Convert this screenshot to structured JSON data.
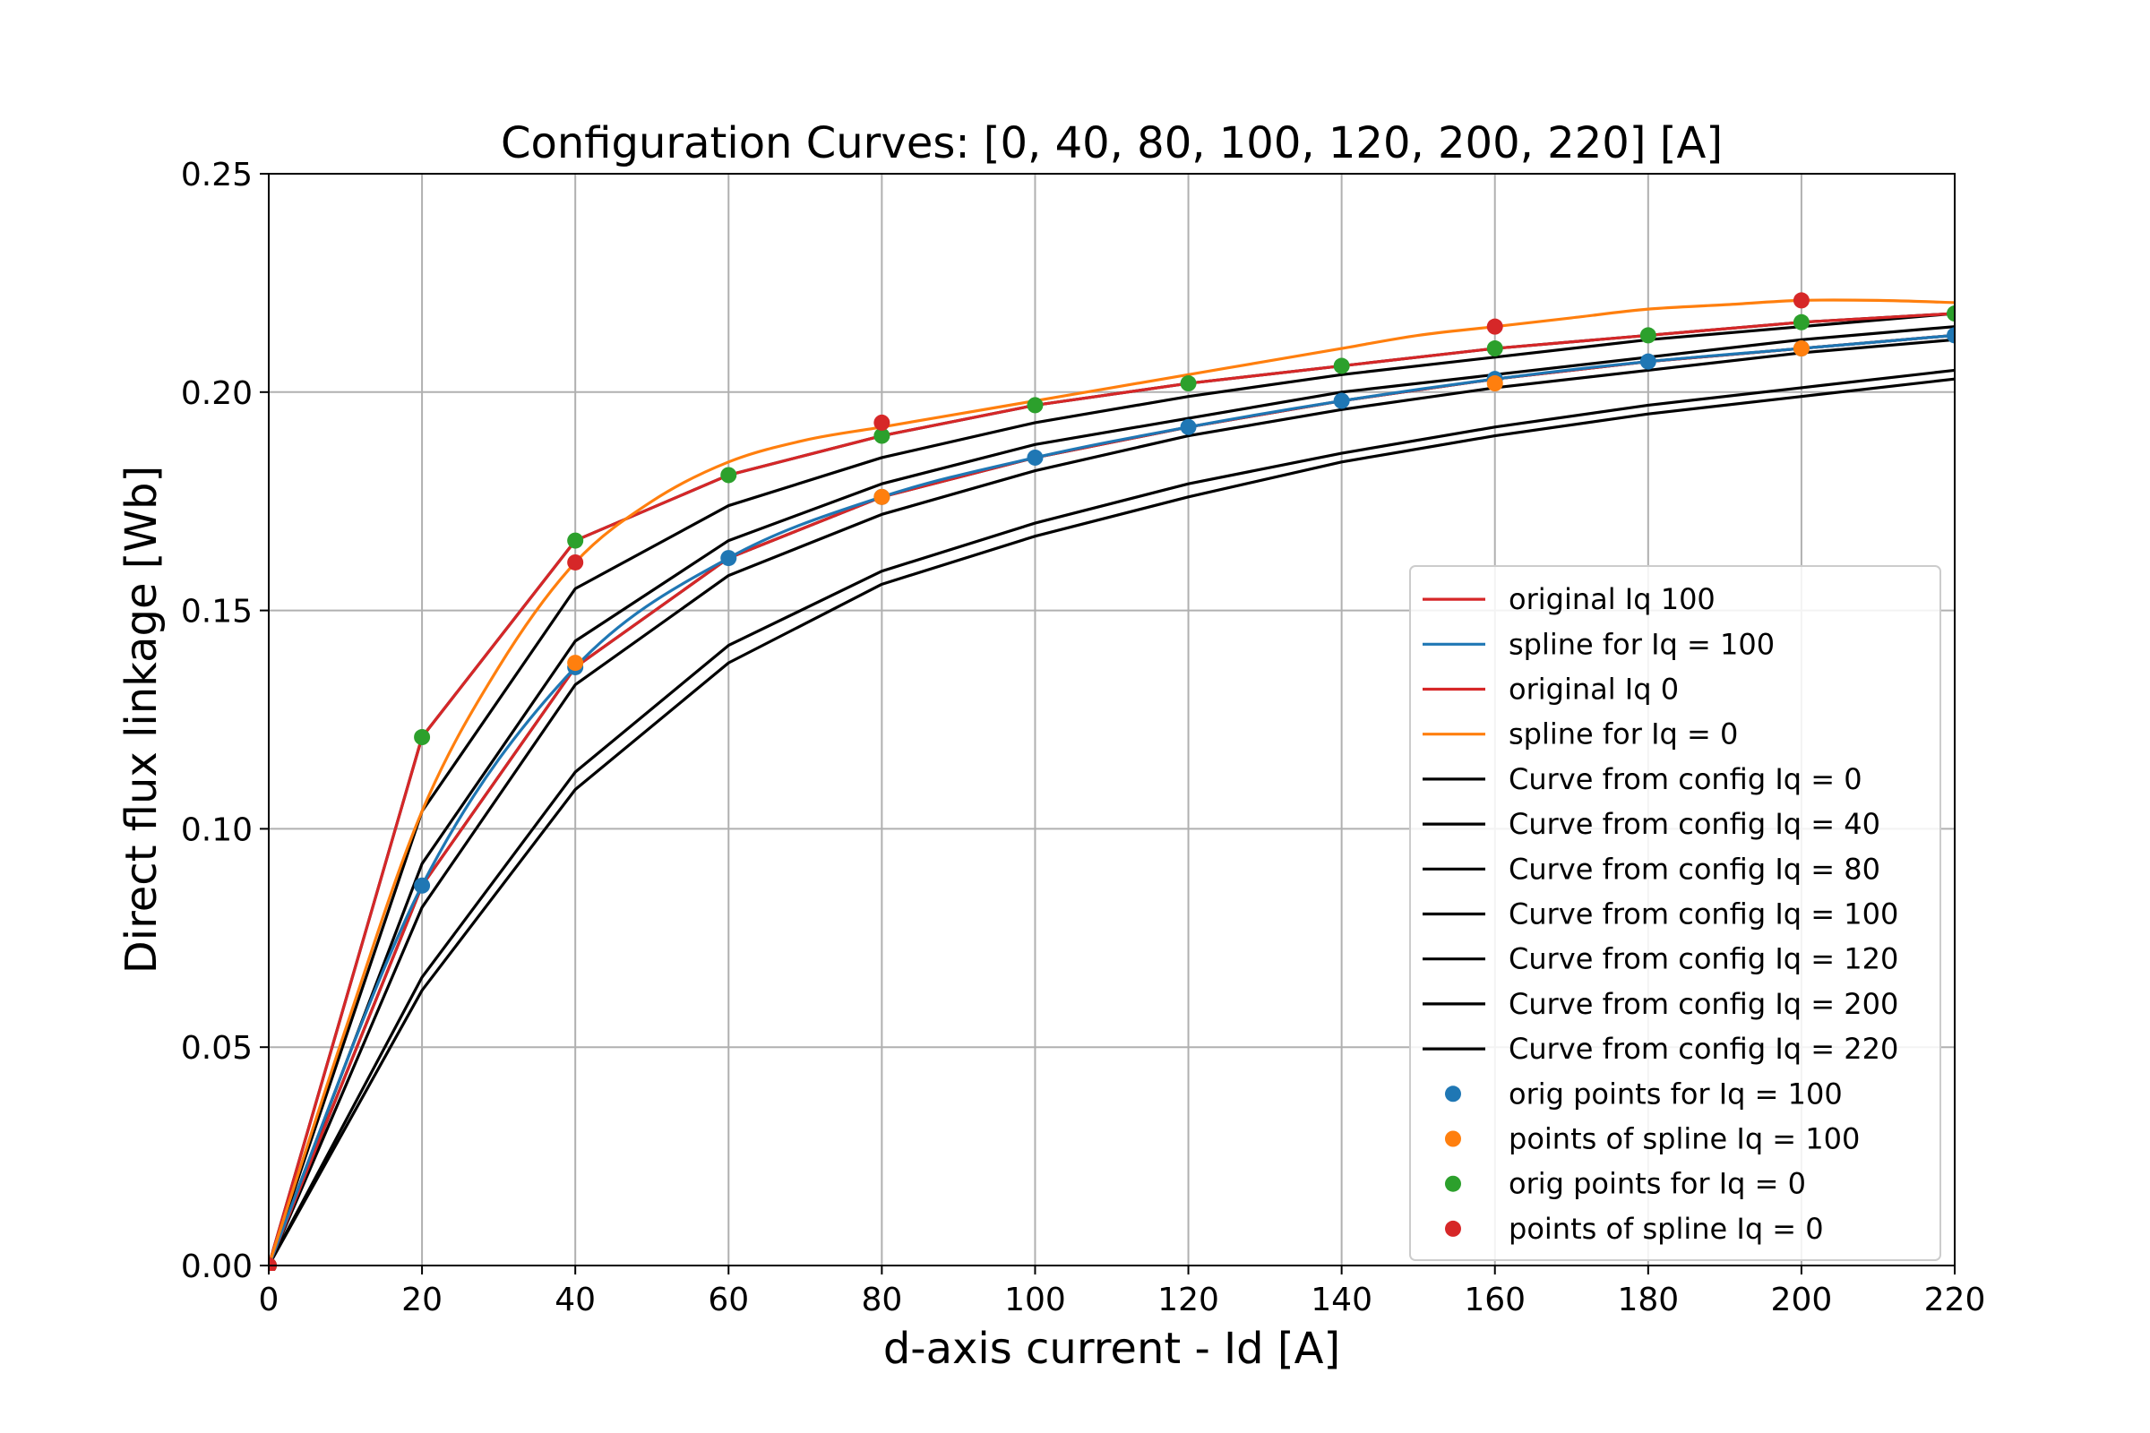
{
  "chart_data": {
    "type": "line",
    "title": "Configuration Curves: [0, 40, 80, 100, 120, 200, 220] [A]",
    "xlabel": "d-axis current - Id [A]",
    "ylabel": "Direct flux linkage [Wb]",
    "xlim": [
      0,
      220
    ],
    "ylim": [
      0,
      0.25
    ],
    "xticks": [
      0,
      20,
      40,
      60,
      80,
      100,
      120,
      140,
      160,
      180,
      200,
      220
    ],
    "xtick_labels": [
      "0",
      "20",
      "40",
      "60",
      "80",
      "100",
      "120",
      "140",
      "160",
      "180",
      "200",
      "220"
    ],
    "yticks": [
      0,
      0.05,
      0.1,
      0.15,
      0.2,
      0.25
    ],
    "ytick_labels": [
      "0.00",
      "0.05",
      "0.10",
      "0.15",
      "0.20",
      "0.25"
    ],
    "grid": true,
    "legend_position": "lower-right",
    "x": [
      0,
      20,
      40,
      60,
      80,
      100,
      120,
      140,
      160,
      180,
      200,
      220
    ],
    "series": [
      {
        "name": "original Iq  100",
        "kind": "line",
        "color": "#d62728",
        "x": [
          0,
          20,
          40,
          60,
          80,
          100,
          120,
          140,
          160,
          180,
          200,
          220
        ],
        "values": [
          0,
          0.087,
          0.137,
          0.162,
          0.176,
          0.185,
          0.192,
          0.198,
          0.203,
          0.207,
          0.21,
          0.213
        ]
      },
      {
        "name": "spline for Iq  = 100",
        "kind": "spline",
        "color": "#1f77b4",
        "x": [
          0,
          20,
          40,
          60,
          80,
          100,
          120,
          140,
          160,
          180,
          200,
          220
        ],
        "values": [
          0,
          0.087,
          0.137,
          0.162,
          0.176,
          0.185,
          0.192,
          0.198,
          0.203,
          0.207,
          0.21,
          0.213
        ]
      },
      {
        "name": "original Iq  0",
        "kind": "line",
        "color": "#d62728",
        "x": [
          0,
          20,
          40,
          60,
          80,
          100,
          120,
          140,
          160,
          180,
          200,
          220
        ],
        "values": [
          0,
          0.121,
          0.166,
          0.181,
          0.19,
          0.197,
          0.202,
          0.206,
          0.21,
          0.213,
          0.216,
          0.218
        ]
      },
      {
        "name": "spline for Iq  = 0",
        "kind": "spline",
        "color": "#ff7f0e",
        "x": [
          0,
          10,
          20,
          30,
          40,
          50,
          60,
          70,
          80,
          90,
          100,
          110,
          120,
          130,
          140,
          150,
          160,
          170,
          180,
          190,
          200,
          210,
          220
        ],
        "values": [
          0,
          0.054,
          0.104,
          0.137,
          0.161,
          0.175,
          0.184,
          0.189,
          0.192,
          0.195,
          0.198,
          0.201,
          0.204,
          0.207,
          0.21,
          0.213,
          0.215,
          0.217,
          0.219,
          0.22,
          0.221,
          0.221,
          0.2205
        ]
      },
      {
        "name": "Curve from config Iq  = 0",
        "kind": "line",
        "color": "#000000",
        "x": [
          0,
          20,
          40,
          60,
          80,
          100,
          120,
          140,
          160,
          180,
          200,
          220
        ],
        "values": [
          0,
          0.121,
          0.166,
          0.181,
          0.19,
          0.197,
          0.202,
          0.206,
          0.21,
          0.213,
          0.216,
          0.218
        ]
      },
      {
        "name": "Curve from config Iq  = 40",
        "kind": "line",
        "color": "#000000",
        "x": [
          0,
          20,
          40,
          60,
          80,
          100,
          120,
          140,
          160,
          180,
          200,
          220
        ],
        "values": [
          0,
          0.104,
          0.155,
          0.174,
          0.185,
          0.193,
          0.199,
          0.204,
          0.208,
          0.212,
          0.215,
          0.218
        ]
      },
      {
        "name": "Curve from config Iq  = 80",
        "kind": "line",
        "color": "#000000",
        "x": [
          0,
          20,
          40,
          60,
          80,
          100,
          120,
          140,
          160,
          180,
          200,
          220
        ],
        "values": [
          0,
          0.092,
          0.143,
          0.166,
          0.179,
          0.188,
          0.194,
          0.2,
          0.204,
          0.208,
          0.212,
          0.215
        ]
      },
      {
        "name": "Curve from config Iq  = 100",
        "kind": "line",
        "color": "#000000",
        "x": [
          0,
          20,
          40,
          60,
          80,
          100,
          120,
          140,
          160,
          180,
          200,
          220
        ],
        "values": [
          0,
          0.087,
          0.137,
          0.162,
          0.176,
          0.185,
          0.192,
          0.198,
          0.203,
          0.207,
          0.21,
          0.213
        ]
      },
      {
        "name": "Curve from config Iq  = 120",
        "kind": "line",
        "color": "#000000",
        "x": [
          0,
          20,
          40,
          60,
          80,
          100,
          120,
          140,
          160,
          180,
          200,
          220
        ],
        "values": [
          0,
          0.082,
          0.133,
          0.158,
          0.172,
          0.182,
          0.19,
          0.196,
          0.201,
          0.205,
          0.209,
          0.212
        ]
      },
      {
        "name": "Curve from config Iq  = 200",
        "kind": "line",
        "color": "#000000",
        "x": [
          0,
          20,
          40,
          60,
          80,
          100,
          120,
          140,
          160,
          180,
          200,
          220
        ],
        "values": [
          0,
          0.066,
          0.113,
          0.142,
          0.159,
          0.17,
          0.179,
          0.186,
          0.192,
          0.197,
          0.201,
          0.205
        ]
      },
      {
        "name": "Curve from config Iq  = 220",
        "kind": "line",
        "color": "#000000",
        "x": [
          0,
          20,
          40,
          60,
          80,
          100,
          120,
          140,
          160,
          180,
          200,
          220
        ],
        "values": [
          0,
          0.063,
          0.109,
          0.138,
          0.156,
          0.167,
          0.176,
          0.184,
          0.19,
          0.195,
          0.199,
          0.203
        ]
      },
      {
        "name": "orig points for  Iq  = 100",
        "kind": "scatter",
        "color": "#1f77b4",
        "x": [
          0,
          20,
          40,
          60,
          80,
          100,
          120,
          140,
          160,
          180,
          200,
          220
        ],
        "values": [
          0,
          0.087,
          0.137,
          0.162,
          0.176,
          0.185,
          0.192,
          0.198,
          0.203,
          0.207,
          0.21,
          0.213
        ]
      },
      {
        "name": "points of spline Iq  = 100",
        "kind": "scatter",
        "color": "#ff7f0e",
        "x": [
          0,
          40,
          80,
          160,
          200
        ],
        "values": [
          0,
          0.138,
          0.176,
          0.202,
          0.21
        ]
      },
      {
        "name": "orig points for  Iq  = 0",
        "kind": "scatter",
        "color": "#2ca02c",
        "x": [
          0,
          20,
          40,
          60,
          80,
          100,
          120,
          140,
          160,
          180,
          200,
          220
        ],
        "values": [
          0,
          0.121,
          0.166,
          0.181,
          0.19,
          0.197,
          0.202,
          0.206,
          0.21,
          0.213,
          0.216,
          0.218
        ]
      },
      {
        "name": "points of spline Iq  = 0",
        "kind": "scatter",
        "color": "#d62728",
        "x": [
          0,
          40,
          80,
          160,
          200
        ],
        "values": [
          0,
          0.161,
          0.193,
          0.215,
          0.221
        ]
      }
    ]
  }
}
